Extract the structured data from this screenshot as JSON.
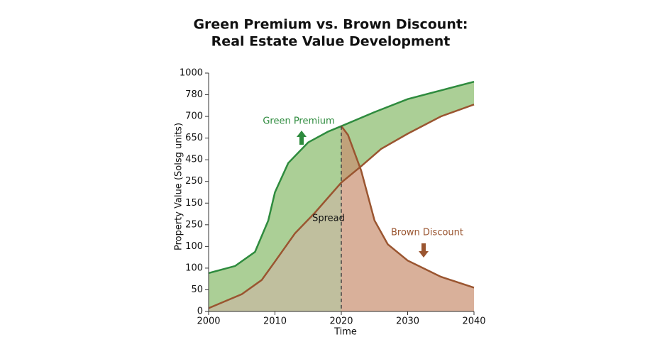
{
  "chart_data": {
    "type": "line",
    "title": [
      "Green Premium vs. Brown Discount:",
      "Real Estate Value Development"
    ],
    "xlabel": "Time",
    "ylabel": "Property Value (Solsg units)",
    "xlim": [
      2000,
      2040
    ],
    "xticks": [
      2000,
      2010,
      2020,
      2030,
      2040
    ],
    "ylim": [
      0,
      11
    ],
    "yticks": [
      {
        "value": 0,
        "label": "0"
      },
      {
        "value": 1,
        "label": "50"
      },
      {
        "value": 2,
        "label": "100"
      },
      {
        "value": 3,
        "label": "100"
      },
      {
        "value": 4,
        "label": "250"
      },
      {
        "value": 5,
        "label": "150"
      },
      {
        "value": 6,
        "label": "250"
      },
      {
        "value": 7,
        "label": "450"
      },
      {
        "value": 8,
        "label": "650"
      },
      {
        "value": 9,
        "label": "700"
      },
      {
        "value": 10,
        "label": "780"
      },
      {
        "value": 11,
        "label": "1000"
      }
    ],
    "series": [
      {
        "color": "#2e8b3e",
        "x": [
          2000,
          2004,
          2007,
          2009,
          2010,
          2012,
          2015,
          2018,
          2020,
          2025,
          2030,
          2035,
          2040
        ],
        "values": [
          1.77,
          2.1,
          2.75,
          4.2,
          5.5,
          6.85,
          7.8,
          8.3,
          8.55,
          9.2,
          9.8,
          10.2,
          10.6
        ]
      },
      {
        "color": "#9a5530",
        "x": [
          2000,
          2005,
          2008,
          2010,
          2013,
          2016,
          2020,
          2023,
          2026,
          2030,
          2035,
          2040
        ],
        "values": [
          0.15,
          0.8,
          1.45,
          2.3,
          3.6,
          4.55,
          5.95,
          6.7,
          7.5,
          8.2,
          9.0,
          9.55
        ]
      },
      {
        "color": "#9a5530",
        "x": [
          2020,
          2021,
          2023,
          2025,
          2027,
          2030,
          2035,
          2040
        ],
        "values": [
          8.55,
          8.15,
          6.5,
          4.2,
          3.1,
          2.35,
          1.6,
          1.1
        ]
      }
    ],
    "marker_x": 2020,
    "annotations": [
      "Green Premium",
      "Brown Discount",
      "Spread"
    ]
  }
}
